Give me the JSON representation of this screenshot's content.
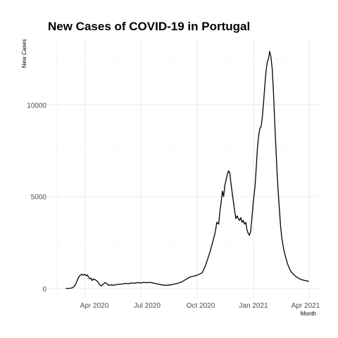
{
  "chart_data": {
    "type": "line",
    "title": "New Cases of COVID-19 in Portugal",
    "xlabel": "Month",
    "ylabel": "New Cases",
    "x_ticks": [
      "Apr 2020",
      "Jul 2020",
      "Oct 2020",
      "Jan 2021",
      "Apr 2021"
    ],
    "y_ticks": [
      "0",
      "5000",
      "10000"
    ],
    "xlim": [
      "2020-02-02",
      "2021-04-15"
    ],
    "ylim": [
      -550,
      13550
    ],
    "grid": true,
    "line_color": "#000000",
    "series": [
      {
        "points": [
          [
            "2020-03-01",
            0
          ],
          [
            "2020-03-08",
            10
          ],
          [
            "2020-03-12",
            40
          ],
          [
            "2020-03-15",
            120
          ],
          [
            "2020-03-18",
            300
          ],
          [
            "2020-03-21",
            550
          ],
          [
            "2020-03-24",
            700
          ],
          [
            "2020-03-27",
            780
          ],
          [
            "2020-03-29",
            720
          ],
          [
            "2020-04-01",
            770
          ],
          [
            "2020-04-03",
            690
          ],
          [
            "2020-04-05",
            740
          ],
          [
            "2020-04-07",
            620
          ],
          [
            "2020-04-09",
            520
          ],
          [
            "2020-04-11",
            560
          ],
          [
            "2020-04-13",
            430
          ],
          [
            "2020-04-15",
            520
          ],
          [
            "2020-04-18",
            470
          ],
          [
            "2020-04-21",
            400
          ],
          [
            "2020-04-23",
            320
          ],
          [
            "2020-04-25",
            200
          ],
          [
            "2020-04-28",
            140
          ],
          [
            "2020-05-01",
            230
          ],
          [
            "2020-05-04",
            320
          ],
          [
            "2020-05-07",
            260
          ],
          [
            "2020-05-10",
            170
          ],
          [
            "2020-05-14",
            200
          ],
          [
            "2020-05-18",
            170
          ],
          [
            "2020-05-22",
            210
          ],
          [
            "2020-05-27",
            230
          ],
          [
            "2020-06-01",
            240
          ],
          [
            "2020-06-06",
            280
          ],
          [
            "2020-06-11",
            260
          ],
          [
            "2020-06-16",
            300
          ],
          [
            "2020-06-21",
            280
          ],
          [
            "2020-06-26",
            320
          ],
          [
            "2020-07-01",
            300
          ],
          [
            "2020-07-06",
            330
          ],
          [
            "2020-07-11",
            310
          ],
          [
            "2020-07-16",
            330
          ],
          [
            "2020-07-21",
            300
          ],
          [
            "2020-07-26",
            260
          ],
          [
            "2020-07-31",
            230
          ],
          [
            "2020-08-05",
            190
          ],
          [
            "2020-08-10",
            170
          ],
          [
            "2020-08-15",
            180
          ],
          [
            "2020-08-20",
            200
          ],
          [
            "2020-08-25",
            240
          ],
          [
            "2020-08-30",
            280
          ],
          [
            "2020-09-04",
            330
          ],
          [
            "2020-09-09",
            420
          ],
          [
            "2020-09-14",
            520
          ],
          [
            "2020-09-19",
            620
          ],
          [
            "2020-09-24",
            660
          ],
          [
            "2020-09-29",
            700
          ],
          [
            "2020-10-04",
            770
          ],
          [
            "2020-10-09",
            850
          ],
          [
            "2020-10-14",
            1200
          ],
          [
            "2020-10-18",
            1600
          ],
          [
            "2020-10-22",
            2000
          ],
          [
            "2020-10-26",
            2500
          ],
          [
            "2020-10-30",
            3000
          ],
          [
            "2020-11-02",
            3600
          ],
          [
            "2020-11-05",
            3500
          ],
          [
            "2020-11-07",
            4200
          ],
          [
            "2020-11-09",
            4700
          ],
          [
            "2020-11-11",
            5300
          ],
          [
            "2020-11-13",
            5000
          ],
          [
            "2020-11-15",
            5600
          ],
          [
            "2020-11-17",
            5900
          ],
          [
            "2020-11-19",
            6200
          ],
          [
            "2020-11-21",
            6400
          ],
          [
            "2020-11-23",
            6300
          ],
          [
            "2020-11-25",
            5700
          ],
          [
            "2020-11-27",
            5200
          ],
          [
            "2020-11-29",
            4700
          ],
          [
            "2020-12-01",
            4200
          ],
          [
            "2020-12-03",
            3800
          ],
          [
            "2020-12-05",
            3950
          ],
          [
            "2020-12-07",
            3800
          ],
          [
            "2020-12-09",
            3700
          ],
          [
            "2020-12-11",
            3850
          ],
          [
            "2020-12-13",
            3600
          ],
          [
            "2020-12-15",
            3700
          ],
          [
            "2020-12-17",
            3500
          ],
          [
            "2020-12-19",
            3600
          ],
          [
            "2020-12-21",
            3200
          ],
          [
            "2020-12-23",
            3000
          ],
          [
            "2020-12-25",
            2900
          ],
          [
            "2020-12-27",
            3100
          ],
          [
            "2020-12-29",
            3800
          ],
          [
            "2020-12-31",
            4600
          ],
          [
            "2021-01-03",
            5500
          ],
          [
            "2021-01-05",
            6500
          ],
          [
            "2021-01-07",
            7600
          ],
          [
            "2021-01-09",
            8300
          ],
          [
            "2021-01-11",
            8700
          ],
          [
            "2021-01-13",
            8800
          ],
          [
            "2021-01-15",
            9300
          ],
          [
            "2021-01-17",
            10100
          ],
          [
            "2021-01-19",
            11000
          ],
          [
            "2021-01-21",
            11800
          ],
          [
            "2021-01-23",
            12300
          ],
          [
            "2021-01-25",
            12500
          ],
          [
            "2021-01-27",
            12900
          ],
          [
            "2021-01-29",
            12600
          ],
          [
            "2021-01-31",
            12000
          ],
          [
            "2021-02-02",
            10800
          ],
          [
            "2021-02-04",
            9200
          ],
          [
            "2021-02-06",
            7800
          ],
          [
            "2021-02-08",
            6300
          ],
          [
            "2021-02-10",
            5200
          ],
          [
            "2021-02-12",
            4200
          ],
          [
            "2021-02-14",
            3300
          ],
          [
            "2021-02-16",
            2700
          ],
          [
            "2021-02-19",
            2100
          ],
          [
            "2021-02-22",
            1700
          ],
          [
            "2021-02-25",
            1350
          ],
          [
            "2021-02-28",
            1100
          ],
          [
            "2021-03-03",
            900
          ],
          [
            "2021-03-06",
            800
          ],
          [
            "2021-03-09",
            700
          ],
          [
            "2021-03-12",
            620
          ],
          [
            "2021-03-15",
            560
          ],
          [
            "2021-03-18",
            500
          ],
          [
            "2021-03-21",
            470
          ],
          [
            "2021-03-24",
            440
          ],
          [
            "2021-03-27",
            420
          ],
          [
            "2021-03-30",
            400
          ],
          [
            "2021-04-01",
            390
          ]
        ]
      }
    ]
  }
}
